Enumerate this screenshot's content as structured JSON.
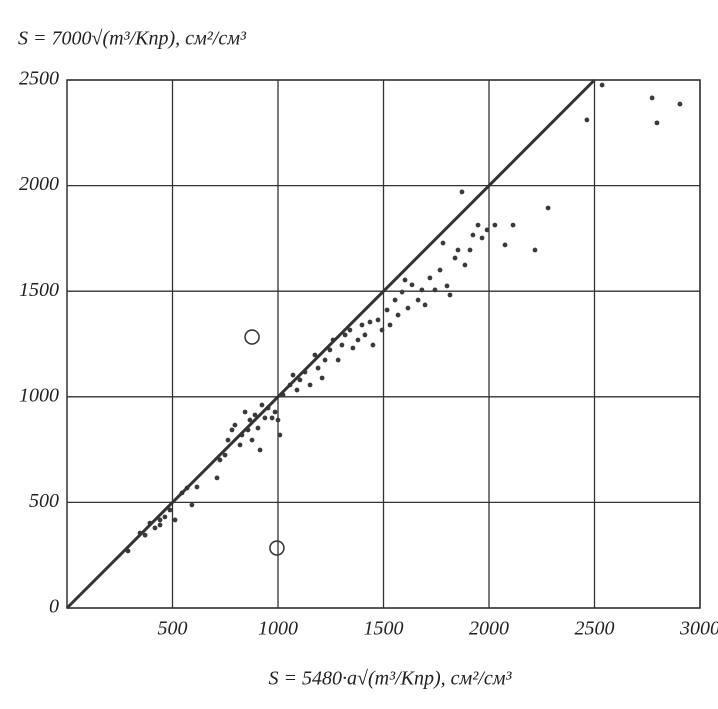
{
  "chart_data": {
    "type": "scatter",
    "y_label": "S = 7000√(m³/Kпр), см²/см³",
    "x_label": "S = 5480·a√(m³/Kпр), см²/см³",
    "xlim": [
      0,
      3000
    ],
    "ylim": [
      0,
      2500
    ],
    "xticks": [
      500,
      1000,
      1500,
      2000,
      2500,
      3000
    ],
    "yticks": [
      0,
      500,
      1000,
      1500,
      2000,
      2500
    ],
    "grid": true,
    "series": [
      {
        "marker": "dot",
        "color": "#3a3a3a",
        "x": [
          289,
          346,
          370,
          393,
          417,
          441,
          464,
          488,
          512,
          441,
          545,
          569,
          592,
          616,
          711,
          725,
          749,
          763,
          782,
          796,
          820,
          829,
          844,
          858,
          867,
          877,
          891,
          905,
          915,
          924,
          938,
          953,
          972,
          986,
          1000,
          1009,
          1024,
          1057,
          1071,
          1090,
          1104,
          1128,
          1152,
          1175,
          1190,
          1209,
          1223,
          1246,
          1261,
          1285,
          1303,
          1318,
          1341,
          1355,
          1379,
          1398,
          1412,
          1436,
          1450,
          1474,
          1493,
          1517,
          1531,
          1555,
          1569,
          1588,
          1602,
          1616,
          1635,
          1664,
          1682,
          1697,
          1720,
          1744,
          1768,
          1782,
          1801,
          1815,
          1839,
          1853,
          1872,
          1886,
          1910,
          1924,
          1948,
          1967,
          1991,
          2028,
          2076,
          2114,
          2218,
          2280,
          2464,
          2536,
          2773,
          2796,
          2905
        ],
        "y": [
          270,
          355,
          345,
          402,
          379,
          417,
          431,
          464,
          417,
          393,
          545,
          568,
          488,
          573,
          616,
          701,
          724,
          795,
          843,
          866,
          772,
          819,
          928,
          843,
          890,
          795,
          914,
          852,
          748,
          961,
          900,
          947,
          900,
          928,
          890,
          819,
          1009,
          1056,
          1103,
          1032,
          1080,
          1117,
          1056,
          1198,
          1136,
          1089,
          1174,
          1222,
          1269,
          1174,
          1245,
          1293,
          1316,
          1231,
          1269,
          1340,
          1293,
          1354,
          1245,
          1364,
          1316,
          1411,
          1340,
          1458,
          1387,
          1496,
          1553,
          1420,
          1530,
          1458,
          1506,
          1435,
          1563,
          1506,
          1600,
          1728,
          1525,
          1482,
          1657,
          1695,
          1970,
          1624,
          1695,
          1766,
          1813,
          1752,
          1790,
          1813,
          1719,
          1813,
          1695,
          1894,
          2311,
          2476,
          2415,
          2297,
          2386
        ]
      },
      {
        "marker": "circle",
        "color": "#3a3a3a",
        "x": [
          877,
          995
        ],
        "y": [
          1283,
          284
        ]
      },
      {
        "marker": "line",
        "color": "#333333",
        "x": [
          0,
          2500
        ],
        "y": [
          0,
          2500
        ]
      }
    ]
  }
}
